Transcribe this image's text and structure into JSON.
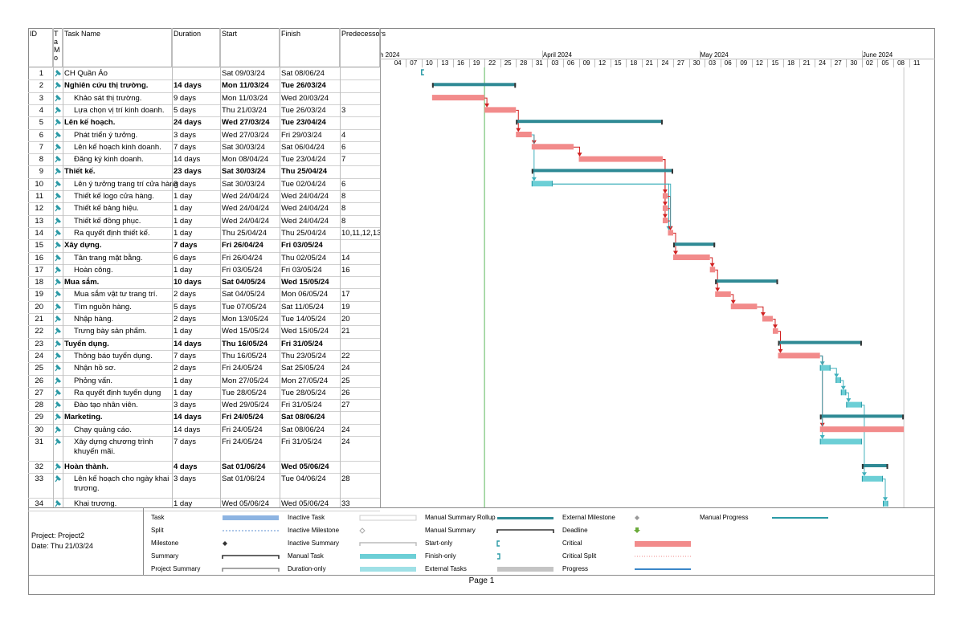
{
  "columns": {
    "id": "ID",
    "mode": "Ta Mo",
    "name": "Task Name",
    "duration": "Duration",
    "start": "Start",
    "finish": "Finish",
    "pred": "Predecessors"
  },
  "months": [
    {
      "label": "h 2024",
      "day": 2
    },
    {
      "label": "April 2024",
      "day": 31
    },
    {
      "label": "May 2024",
      "day": 61
    },
    {
      "label": "June 2024",
      "day": 92
    }
  ],
  "weeks": [
    "04",
    "07",
    "10",
    "13",
    "16",
    "19",
    "22",
    "25",
    "28",
    "31",
    "03",
    "06",
    "09",
    "12",
    "15",
    "18",
    "21",
    "24",
    "27",
    "30",
    "03",
    "06",
    "09",
    "12",
    "15",
    "18",
    "21",
    "24",
    "27",
    "30",
    "02",
    "05",
    "08",
    "11"
  ],
  "status_date_day": 20,
  "tasks": [
    {
      "id": "1",
      "name": "CH Quần Áo",
      "dur": "",
      "start": "Sat 09/03/24",
      "finish": "Sat 08/06/24",
      "pred": "",
      "level": 0,
      "summary": false,
      "bar": {
        "type": "startonly",
        "s": 8
      }
    },
    {
      "id": "2",
      "name": "Nghiên cứu thị trường.",
      "dur": "14 days",
      "start": "Mon 11/03/24",
      "finish": "Tue 26/03/24",
      "pred": "",
      "level": 0,
      "summary": true,
      "bar": {
        "type": "summary",
        "s": 10,
        "e": 26
      }
    },
    {
      "id": "3",
      "name": "Khảo sát thị trường.",
      "dur": "9 days",
      "start": "Mon 11/03/24",
      "finish": "Wed 20/03/24",
      "pred": "",
      "level": 1,
      "summary": false,
      "bar": {
        "type": "critical",
        "s": 10,
        "e": 20
      }
    },
    {
      "id": "4",
      "name": "Lựa chọn vị trí kinh doanh.",
      "dur": "5 days",
      "start": "Thu 21/03/24",
      "finish": "Tue 26/03/24",
      "pred": "3",
      "level": 1,
      "summary": false,
      "bar": {
        "type": "critical",
        "s": 20,
        "e": 26
      }
    },
    {
      "id": "5",
      "name": "Lên kế hoạch.",
      "dur": "24 days",
      "start": "Wed 27/03/24",
      "finish": "Tue 23/04/24",
      "pred": "",
      "level": 0,
      "summary": true,
      "bar": {
        "type": "summary",
        "s": 26,
        "e": 54
      }
    },
    {
      "id": "6",
      "name": "Phát triển ý tưởng.",
      "dur": "3 days",
      "start": "Wed 27/03/24",
      "finish": "Fri 29/03/24",
      "pred": "4",
      "level": 1,
      "summary": false,
      "bar": {
        "type": "critical",
        "s": 26,
        "e": 29
      }
    },
    {
      "id": "7",
      "name": "Lên kế hoạch kinh doanh.",
      "dur": "7 days",
      "start": "Sat 30/03/24",
      "finish": "Sat 06/04/24",
      "pred": "6",
      "level": 1,
      "summary": false,
      "bar": {
        "type": "critical",
        "s": 29,
        "e": 37
      }
    },
    {
      "id": "8",
      "name": "Đăng ký kinh doanh.",
      "dur": "14 days",
      "start": "Mon 08/04/24",
      "finish": "Tue 23/04/24",
      "pred": "7",
      "level": 1,
      "summary": false,
      "bar": {
        "type": "critical",
        "s": 38,
        "e": 54
      }
    },
    {
      "id": "9",
      "name": "Thiết kế.",
      "dur": "23 days",
      "start": "Sat 30/03/24",
      "finish": "Thu 25/04/24",
      "pred": "",
      "level": 0,
      "summary": true,
      "bar": {
        "type": "summary",
        "s": 29,
        "e": 56
      }
    },
    {
      "id": "10",
      "name": "Lên ý tưởng trang trí cửa hàng",
      "dur": "3 days",
      "start": "Sat 30/03/24",
      "finish": "Tue 02/04/24",
      "pred": "6",
      "level": 1,
      "summary": false,
      "bar": {
        "type": "manual",
        "s": 29,
        "e": 33
      }
    },
    {
      "id": "11",
      "name": "Thiết kế logo cửa hàng.",
      "dur": "1 day",
      "start": "Wed 24/04/24",
      "finish": "Wed 24/04/24",
      "pred": "8",
      "level": 1,
      "summary": false,
      "bar": {
        "type": "critical",
        "s": 54,
        "e": 55
      }
    },
    {
      "id": "12",
      "name": "Thiết kế bảng hiệu.",
      "dur": "1 day",
      "start": "Wed 24/04/24",
      "finish": "Wed 24/04/24",
      "pred": "8",
      "level": 1,
      "summary": false,
      "bar": {
        "type": "critical",
        "s": 54,
        "e": 55
      }
    },
    {
      "id": "13",
      "name": "Thiết kế đồng phục.",
      "dur": "1 day",
      "start": "Wed 24/04/24",
      "finish": "Wed 24/04/24",
      "pred": "8",
      "level": 1,
      "summary": false,
      "bar": {
        "type": "critical",
        "s": 54,
        "e": 55
      }
    },
    {
      "id": "14",
      "name": "Ra quyết định thiết kế.",
      "dur": "1 day",
      "start": "Thu 25/04/24",
      "finish": "Thu 25/04/24",
      "pred": "10,11,12,13",
      "level": 1,
      "summary": false,
      "bar": {
        "type": "critical",
        "s": 55,
        "e": 56
      }
    },
    {
      "id": "15",
      "name": "Xây dựng.",
      "dur": "7 days",
      "start": "Fri 26/04/24",
      "finish": "Fri 03/05/24",
      "pred": "",
      "level": 0,
      "summary": true,
      "bar": {
        "type": "summary",
        "s": 56,
        "e": 64
      }
    },
    {
      "id": "16",
      "name": "Tân trang mặt bằng.",
      "dur": "6 days",
      "start": "Fri 26/04/24",
      "finish": "Thu 02/05/24",
      "pred": "14",
      "level": 1,
      "summary": false,
      "bar": {
        "type": "critical",
        "s": 56,
        "e": 63
      }
    },
    {
      "id": "17",
      "name": "Hoàn công.",
      "dur": "1 day",
      "start": "Fri 03/05/24",
      "finish": "Fri 03/05/24",
      "pred": "16",
      "level": 1,
      "summary": false,
      "bar": {
        "type": "critical",
        "s": 63,
        "e": 64
      }
    },
    {
      "id": "18",
      "name": "Mua sắm.",
      "dur": "10 days",
      "start": "Sat 04/05/24",
      "finish": "Wed 15/05/24",
      "pred": "",
      "level": 0,
      "summary": true,
      "bar": {
        "type": "summary",
        "s": 64,
        "e": 76
      }
    },
    {
      "id": "19",
      "name": "Mua sắm vật tư trang trí.",
      "dur": "2 days",
      "start": "Sat 04/05/24",
      "finish": "Mon 06/05/24",
      "pred": "17",
      "level": 1,
      "summary": false,
      "bar": {
        "type": "critical",
        "s": 64,
        "e": 67
      }
    },
    {
      "id": "20",
      "name": "Tìm nguồn hàng.",
      "dur": "5 days",
      "start": "Tue 07/05/24",
      "finish": "Sat 11/05/24",
      "pred": "19",
      "level": 1,
      "summary": false,
      "bar": {
        "type": "critical",
        "s": 67,
        "e": 72
      }
    },
    {
      "id": "21",
      "name": "Nhập hàng.",
      "dur": "2 days",
      "start": "Mon 13/05/24",
      "finish": "Tue 14/05/24",
      "pred": "20",
      "level": 1,
      "summary": false,
      "bar": {
        "type": "critical",
        "s": 73,
        "e": 75
      }
    },
    {
      "id": "22",
      "name": "Trưng bày sản phẩm.",
      "dur": "1 day",
      "start": "Wed 15/05/24",
      "finish": "Wed 15/05/24",
      "pred": "21",
      "level": 1,
      "summary": false,
      "bar": {
        "type": "critical",
        "s": 75,
        "e": 76
      }
    },
    {
      "id": "23",
      "name": "Tuyển dụng.",
      "dur": "14 days",
      "start": "Thu 16/05/24",
      "finish": "Fri 31/05/24",
      "pred": "",
      "level": 0,
      "summary": true,
      "bar": {
        "type": "summary",
        "s": 76,
        "e": 92
      }
    },
    {
      "id": "24",
      "name": "Thông báo tuyển dụng.",
      "dur": "7 days",
      "start": "Thu 16/05/24",
      "finish": "Thu 23/05/24",
      "pred": "22",
      "level": 1,
      "summary": false,
      "bar": {
        "type": "critical",
        "s": 76,
        "e": 84
      }
    },
    {
      "id": "25",
      "name": "Nhận hồ sơ.",
      "dur": "2 days",
      "start": "Fri 24/05/24",
      "finish": "Sat 25/05/24",
      "pred": "24",
      "level": 1,
      "summary": false,
      "bar": {
        "type": "manual",
        "s": 84,
        "e": 86
      }
    },
    {
      "id": "26",
      "name": "Phỏng vấn.",
      "dur": "1 day",
      "start": "Mon 27/05/24",
      "finish": "Mon 27/05/24",
      "pred": "25",
      "level": 1,
      "summary": false,
      "bar": {
        "type": "manual",
        "s": 87,
        "e": 88
      }
    },
    {
      "id": "27",
      "name": "Ra quyết định tuyển dụng",
      "dur": "1 day",
      "start": "Tue 28/05/24",
      "finish": "Tue 28/05/24",
      "pred": "26",
      "level": 1,
      "summary": false,
      "bar": {
        "type": "manual",
        "s": 88,
        "e": 89
      }
    },
    {
      "id": "28",
      "name": "Đào tạo nhân viên.",
      "dur": "3 days",
      "start": "Wed 29/05/24",
      "finish": "Fri 31/05/24",
      "pred": "27",
      "level": 1,
      "summary": false,
      "bar": {
        "type": "manual",
        "s": 89,
        "e": 92
      }
    },
    {
      "id": "29",
      "name": "Marketing.",
      "dur": "14 days",
      "start": "Fri 24/05/24",
      "finish": "Sat 08/06/24",
      "pred": "",
      "level": 0,
      "summary": true,
      "bar": {
        "type": "summary",
        "s": 84,
        "e": 100
      }
    },
    {
      "id": "30",
      "name": "Chạy quảng cáo.",
      "dur": "14 days",
      "start": "Fri 24/05/24",
      "finish": "Sat 08/06/24",
      "pred": "24",
      "level": 1,
      "summary": false,
      "bar": {
        "type": "critical",
        "s": 84,
        "e": 100
      }
    },
    {
      "id": "31",
      "name": "Xây dựng chương trình khuyến mãi.",
      "dur": "7 days",
      "start": "Fri 24/05/24",
      "finish": "Fri 31/05/24",
      "pred": "24",
      "level": 1,
      "summary": false,
      "bar": {
        "type": "manual",
        "s": 84,
        "e": 92
      }
    },
    {
      "id": "32",
      "name": "Hoàn thành.",
      "dur": "4 days",
      "start": "Sat 01/06/24",
      "finish": "Wed 05/06/24",
      "pred": "",
      "level": 0,
      "summary": true,
      "bar": {
        "type": "summary",
        "s": 92,
        "e": 97
      }
    },
    {
      "id": "33",
      "name": "Lên kế hoạch cho ngày khai trương.",
      "dur": "3 days",
      "start": "Sat 01/06/24",
      "finish": "Tue 04/06/24",
      "pred": "28",
      "level": 1,
      "summary": false,
      "bar": {
        "type": "manual",
        "s": 92,
        "e": 96
      }
    },
    {
      "id": "34",
      "name": "Khai trương.",
      "dur": "1 day",
      "start": "Wed 05/06/24",
      "finish": "Wed 05/06/24",
      "pred": "33",
      "level": 1,
      "summary": false,
      "bar": {
        "type": "manual",
        "s": 96,
        "e": 97
      }
    }
  ],
  "legend": {
    "project": "Project: Project2",
    "date": "Date: Thu 21/03/24",
    "items": [
      [
        "Task",
        "Split",
        "Milestone",
        "Summary",
        "Project Summary"
      ],
      [
        "Inactive Task",
        "Inactive Milestone",
        "Inactive Summary",
        "Manual Task",
        "Duration-only"
      ],
      [
        "Manual Summary Rollup",
        "Manual Summary",
        "Start-only",
        "Finish-only",
        "External Tasks"
      ],
      [
        "External Milestone",
        "Deadline",
        "Critical",
        "Critical Split",
        "Progress"
      ],
      [
        "Manual Progress"
      ]
    ]
  },
  "footer": {
    "page": "Page 1"
  },
  "colors": {
    "critical": "#f28b8b",
    "manual": "#6ccfd6",
    "summary": "#2f8a95",
    "grid": "#d0d0d0",
    "status": "#5cb85c",
    "link_red": "#d02020",
    "link_teal": "#40b0bc"
  }
}
